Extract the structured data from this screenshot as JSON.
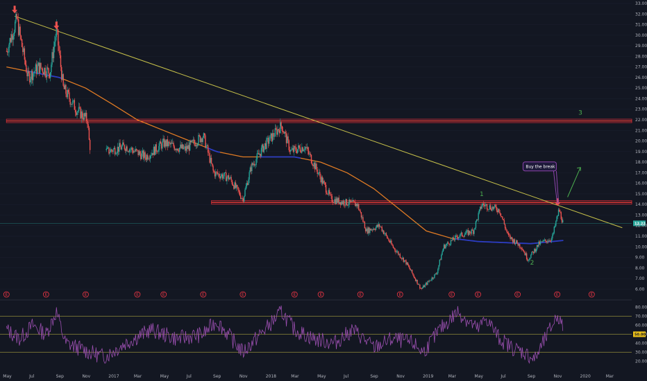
{
  "chart_data": [
    {
      "type": "candlestick",
      "title": "",
      "y_axis": {
        "range": [
          5.5,
          33.0
        ],
        "ticks": [
          "33.00",
          "32.00",
          "31.00",
          "30.00",
          "29.00",
          "28.00",
          "27.00",
          "26.00",
          "25.00",
          "24.00",
          "23.00",
          "22.00",
          "21.00",
          "20.00",
          "19.00",
          "18.00",
          "17.00",
          "16.00",
          "15.00",
          "14.00",
          "13.00",
          "12.00",
          "11.00",
          "10.00",
          "9.00",
          "8.00",
          "7.00",
          "6.00"
        ],
        "tick_values": [
          33,
          32,
          31,
          30,
          29,
          28,
          27,
          26,
          25,
          24,
          23,
          22,
          21,
          20,
          19,
          18,
          17,
          16,
          15,
          14,
          13,
          12,
          11,
          10,
          9,
          8,
          7,
          6
        ]
      },
      "x_axis": {
        "labels": [
          "May",
          "Jul",
          "Sep",
          "Nov",
          "2017",
          "Mar",
          "May",
          "Jul",
          "Sep",
          "Nov",
          "2018",
          "Mar",
          "May",
          "Jul",
          "Sep",
          "Nov",
          "2019",
          "Mar",
          "May",
          "Jul",
          "Sep",
          "Nov",
          "2020",
          "Mar"
        ],
        "start": "2016-05",
        "end": "2020-03"
      },
      "current_price": {
        "value": 12.22,
        "label": "12.22",
        "color": "#26a69a"
      },
      "price_path": [
        {
          "x": "2016-05-01",
          "y": 28.5
        },
        {
          "x": "2016-05-25",
          "y": 31.5
        },
        {
          "x": "2016-06-20",
          "y": 26.0
        },
        {
          "x": "2016-07-15",
          "y": 27.0
        },
        {
          "x": "2016-08-10",
          "y": 26.5
        },
        {
          "x": "2016-08-25",
          "y": 30.5
        },
        {
          "x": "2016-09-10",
          "y": 25.0
        },
        {
          "x": "2016-10-10",
          "y": 23.0
        },
        {
          "x": "2016-11-05",
          "y": 22.0
        },
        {
          "x": "2016-11-10",
          "y": 19.5
        },
        {
          "x": "2016-12-20",
          "y": 19.0
        },
        {
          "x": "2017-02-01",
          "y": 19.5
        },
        {
          "x": "2017-03-20",
          "y": 18.5
        },
        {
          "x": "2017-05-01",
          "y": 19.8
        },
        {
          "x": "2017-06-20",
          "y": 19.2
        },
        {
          "x": "2017-08-01",
          "y": 20.5
        },
        {
          "x": "2017-08-25",
          "y": 17.0
        },
        {
          "x": "2017-10-01",
          "y": 16.5
        },
        {
          "x": "2017-11-01",
          "y": 14.5
        },
        {
          "x": "2017-11-20",
          "y": 17.5
        },
        {
          "x": "2017-12-20",
          "y": 19.5
        },
        {
          "x": "2018-01-30",
          "y": 21.5
        },
        {
          "x": "2018-02-20",
          "y": 19.0
        },
        {
          "x": "2018-03-25",
          "y": 19.5
        },
        {
          "x": "2018-04-25",
          "y": 17.0
        },
        {
          "x": "2018-05-25",
          "y": 14.5
        },
        {
          "x": "2018-06-25",
          "y": 14.2
        },
        {
          "x": "2018-07-25",
          "y": 14.0
        },
        {
          "x": "2018-08-15",
          "y": 11.5
        },
        {
          "x": "2018-09-15",
          "y": 12.0
        },
        {
          "x": "2018-10-15",
          "y": 10.0
        },
        {
          "x": "2018-11-15",
          "y": 8.5
        },
        {
          "x": "2018-12-20",
          "y": 6.0
        },
        {
          "x": "2019-01-25",
          "y": 7.5
        },
        {
          "x": "2019-02-10",
          "y": 10.0
        },
        {
          "x": "2019-03-15",
          "y": 11.0
        },
        {
          "x": "2019-04-20",
          "y": 11.5
        },
        {
          "x": "2019-05-10",
          "y": 14.0
        },
        {
          "x": "2019-06-20",
          "y": 13.5
        },
        {
          "x": "2019-07-10",
          "y": 11.0
        },
        {
          "x": "2019-08-10",
          "y": 10.0
        },
        {
          "x": "2019-08-25",
          "y": 8.8
        },
        {
          "x": "2019-09-20",
          "y": 10.3
        },
        {
          "x": "2019-10-20",
          "y": 10.8
        },
        {
          "x": "2019-11-05",
          "y": 13.5
        },
        {
          "x": "2019-11-15",
          "y": 12.2
        }
      ],
      "moving_average": [
        {
          "x": "2016-05-01",
          "y": 27.0
        },
        {
          "x": "2016-07-01",
          "y": 26.5
        },
        {
          "x": "2016-09-01",
          "y": 26.0
        },
        {
          "x": "2016-11-01",
          "y": 25.0
        },
        {
          "x": "2017-01-01",
          "y": 23.5
        },
        {
          "x": "2017-03-01",
          "y": 22.0
        },
        {
          "x": "2017-05-01",
          "y": 21.0
        },
        {
          "x": "2017-07-01",
          "y": 20.0
        },
        {
          "x": "2017-09-01",
          "y": 19.0
        },
        {
          "x": "2017-11-01",
          "y": 18.5
        },
        {
          "x": "2018-01-01",
          "y": 18.5
        },
        {
          "x": "2018-03-01",
          "y": 18.5
        },
        {
          "x": "2018-05-01",
          "y": 18.0
        },
        {
          "x": "2018-07-01",
          "y": 17.0
        },
        {
          "x": "2018-09-01",
          "y": 15.5
        },
        {
          "x": "2018-11-01",
          "y": 13.5
        },
        {
          "x": "2019-01-01",
          "y": 11.5
        },
        {
          "x": "2019-03-01",
          "y": 10.8
        },
        {
          "x": "2019-05-01",
          "y": 10.5
        },
        {
          "x": "2019-07-01",
          "y": 10.4
        },
        {
          "x": "2019-09-01",
          "y": 10.3
        },
        {
          "x": "2019-11-15",
          "y": 10.6
        }
      ],
      "horizontal_levels": [
        {
          "y": 21.9,
          "x_start": "2016-05-01",
          "color": "#b22833"
        },
        {
          "y": 14.2,
          "x_start": "2017-08-20",
          "color": "#b22833"
        }
      ],
      "trendline": {
        "from": {
          "x": "2016-05-20",
          "y": 31.8
        },
        "to": {
          "x": "2020-03-31",
          "y": 11.8
        },
        "color": "#c8c24a"
      },
      "annotations": [
        {
          "text": "3",
          "x": "2019-12-20",
          "y": 22.5,
          "color": "#4caf50"
        },
        {
          "text": "1",
          "x": "2019-05-05",
          "y": 14.8,
          "color": "#4caf50"
        },
        {
          "text": "2",
          "x": "2019-08-30",
          "y": 8.3,
          "color": "#4caf50"
        },
        {
          "text": "Buy the break",
          "x": "2019-08-20",
          "y": 17.5,
          "color": "#ffffff",
          "box": "#1e1a3a",
          "border": "#8e44ad"
        }
      ],
      "down_arrows": [
        {
          "x": "2016-05-20",
          "y": 32.0
        },
        {
          "x": "2016-08-25",
          "y": 30.5
        },
        {
          "x": "2019-11-02",
          "y": 13.8
        }
      ],
      "up_arrow": {
        "from": {
          "x": "2019-11-25",
          "y": 14.7
        },
        "to": {
          "x": "2019-12-25",
          "y": 17.5
        },
        "color": "#4caf50"
      },
      "earnings_markers": {
        "label": "E",
        "dates": [
          "2016-05-01",
          "2016-08-01",
          "2016-11-01",
          "2017-03-01",
          "2017-05-01",
          "2017-08-01",
          "2017-11-01",
          "2018-03-01",
          "2018-05-01",
          "2018-08-01",
          "2018-11-01",
          "2019-03-01",
          "2019-05-01",
          "2019-08-01",
          "2019-11-01",
          "2020-01-20"
        ]
      }
    },
    {
      "type": "line",
      "title": "",
      "y_axis": {
        "range": [
          15,
          85
        ],
        "ticks": [
          "80.00",
          "70.00",
          "60.00",
          "50.00",
          "40.00",
          "30.00",
          "20.00"
        ],
        "tick_values": [
          80,
          70,
          60,
          50,
          40,
          30,
          20
        ]
      },
      "bands": [
        70,
        50,
        30
      ],
      "current_value": {
        "value": 50.0,
        "label": "50.00",
        "color": "#f0c419"
      },
      "series": [
        {
          "color": "#9b4fb0",
          "x": [
            "2016-05-01",
            "2016-06-01",
            "2016-07-01",
            "2016-08-01",
            "2016-08-25",
            "2016-09-15",
            "2016-10-15",
            "2016-11-10",
            "2016-12-15",
            "2017-02-01",
            "2017-04-01",
            "2017-06-01",
            "2017-08-01",
            "2017-09-01",
            "2017-11-01",
            "2018-01-01",
            "2018-01-30",
            "2018-03-01",
            "2018-04-15",
            "2018-06-01",
            "2018-07-15",
            "2018-09-01",
            "2018-10-15",
            "2018-12-01",
            "2018-12-25",
            "2019-02-01",
            "2019-03-15",
            "2019-05-01",
            "2019-05-20",
            "2019-06-20",
            "2019-07-20",
            "2019-08-15",
            "2019-09-10",
            "2019-10-15",
            "2019-11-02",
            "2019-11-15"
          ],
          "y": [
            55,
            45,
            60,
            50,
            75,
            40,
            35,
            30,
            25,
            40,
            55,
            45,
            50,
            65,
            30,
            60,
            75,
            55,
            45,
            40,
            55,
            35,
            45,
            40,
            30,
            55,
            75,
            55,
            68,
            45,
            35,
            30,
            22,
            55,
            72,
            55
          ]
        }
      ]
    }
  ]
}
